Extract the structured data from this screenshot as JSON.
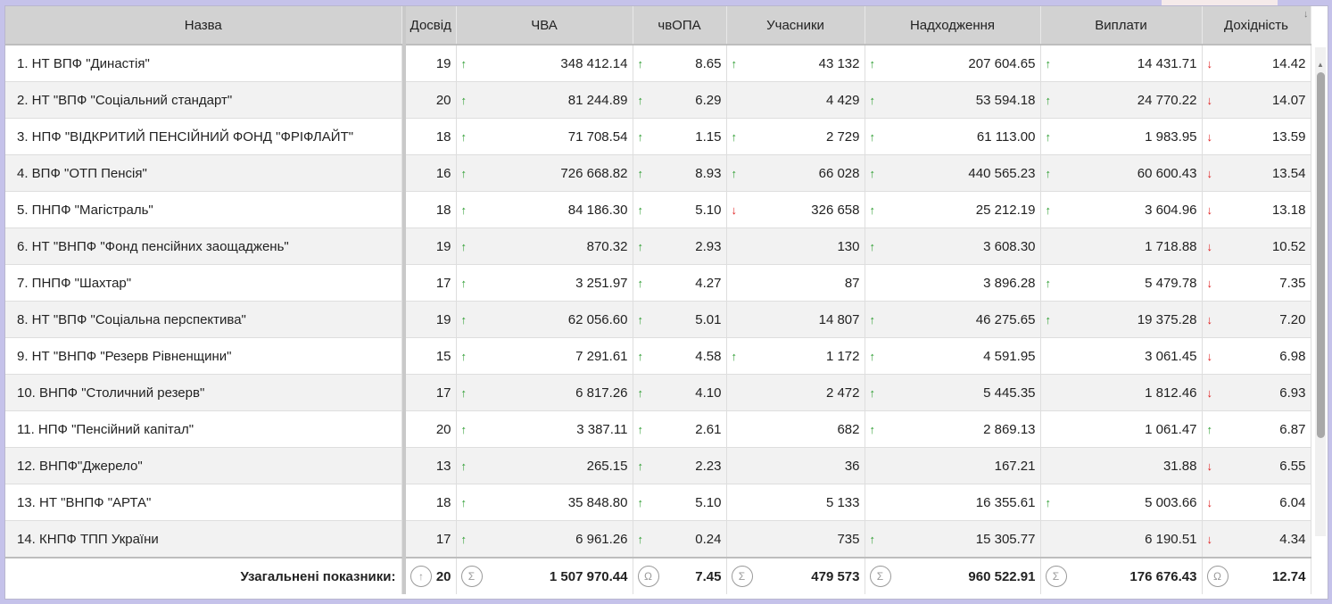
{
  "header": {
    "name": "Назва",
    "experience": "Досвід",
    "nav": "ЧВА",
    "unit_value": "чвОПА",
    "participants": "Учасники",
    "receipts": "Надходження",
    "payments": "Виплати",
    "return": "Дохідність"
  },
  "rows": [
    {
      "name": "1. НТ ВПФ \"Династія\"",
      "exp": "19",
      "nav": "348 412.14",
      "nav_dir": "up",
      "opa": "8.65",
      "opa_dir": "up",
      "part": "43 132",
      "part_dir": "up",
      "in": "207 604.65",
      "in_dir": "up",
      "out": "14 431.71",
      "out_dir": "up",
      "ret": "14.42",
      "ret_dir": "down"
    },
    {
      "name": "2. НТ \"ВПФ \"Соціальний стандарт\"",
      "exp": "20",
      "nav": "81 244.89",
      "nav_dir": "up",
      "opa": "6.29",
      "opa_dir": "up",
      "part": "4 429",
      "part_dir": "",
      "in": "53 594.18",
      "in_dir": "up",
      "out": "24 770.22",
      "out_dir": "up",
      "ret": "14.07",
      "ret_dir": "down"
    },
    {
      "name": "3. НПФ \"ВІДКРИТИЙ ПЕНСІЙНИЙ ФОНД \"ФРІФЛАЙТ\"",
      "exp": "18",
      "nav": "71 708.54",
      "nav_dir": "up",
      "opa": "1.15",
      "opa_dir": "up",
      "part": "2 729",
      "part_dir": "up",
      "in": "61 113.00",
      "in_dir": "up",
      "out": "1 983.95",
      "out_dir": "up",
      "ret": "13.59",
      "ret_dir": "down"
    },
    {
      "name": "4. ВПФ \"ОТП Пенсія\"",
      "exp": "16",
      "nav": "726 668.82",
      "nav_dir": "up",
      "opa": "8.93",
      "opa_dir": "up",
      "part": "66 028",
      "part_dir": "up",
      "in": "440 565.23",
      "in_dir": "up",
      "out": "60 600.43",
      "out_dir": "up",
      "ret": "13.54",
      "ret_dir": "down"
    },
    {
      "name": "5. ПНПФ \"Магістраль\"",
      "exp": "18",
      "nav": "84 186.30",
      "nav_dir": "up",
      "opa": "5.10",
      "opa_dir": "up",
      "part": "326 658",
      "part_dir": "down",
      "in": "25 212.19",
      "in_dir": "up",
      "out": "3 604.96",
      "out_dir": "up",
      "ret": "13.18",
      "ret_dir": "down"
    },
    {
      "name": "6. НТ \"ВНПФ \"Фонд пенсійних заощаджень\"",
      "exp": "19",
      "nav": "870.32",
      "nav_dir": "up",
      "opa": "2.93",
      "opa_dir": "up",
      "part": "130",
      "part_dir": "",
      "in": "3 608.30",
      "in_dir": "up",
      "out": "1 718.88",
      "out_dir": "",
      "ret": "10.52",
      "ret_dir": "down"
    },
    {
      "name": "7. ПНПФ \"Шахтар\"",
      "exp": "17",
      "nav": "3 251.97",
      "nav_dir": "up",
      "opa": "4.27",
      "opa_dir": "up",
      "part": "87",
      "part_dir": "",
      "in": "3 896.28",
      "in_dir": "",
      "out": "5 479.78",
      "out_dir": "up",
      "ret": "7.35",
      "ret_dir": "down"
    },
    {
      "name": "8. НТ \"ВПФ \"Соціальна перспектива\"",
      "exp": "19",
      "nav": "62 056.60",
      "nav_dir": "up",
      "opa": "5.01",
      "opa_dir": "up",
      "part": "14 807",
      "part_dir": "",
      "in": "46 275.65",
      "in_dir": "up",
      "out": "19 375.28",
      "out_dir": "up",
      "ret": "7.20",
      "ret_dir": "down"
    },
    {
      "name": "9. НТ \"ВНПФ \"Резерв Рівненщини\"",
      "exp": "15",
      "nav": "7 291.61",
      "nav_dir": "up",
      "opa": "4.58",
      "opa_dir": "up",
      "part": "1 172",
      "part_dir": "up",
      "in": "4 591.95",
      "in_dir": "up",
      "out": "3 061.45",
      "out_dir": "",
      "ret": "6.98",
      "ret_dir": "down"
    },
    {
      "name": "10. ВНПФ \"Столичний резерв\"",
      "exp": "17",
      "nav": "6 817.26",
      "nav_dir": "up",
      "opa": "4.10",
      "opa_dir": "up",
      "part": "2 472",
      "part_dir": "",
      "in": "5 445.35",
      "in_dir": "up",
      "out": "1 812.46",
      "out_dir": "",
      "ret": "6.93",
      "ret_dir": "down"
    },
    {
      "name": "11. НПФ \"Пенсійний капітал\"",
      "exp": "20",
      "nav": "3 387.11",
      "nav_dir": "up",
      "opa": "2.61",
      "opa_dir": "up",
      "part": "682",
      "part_dir": "",
      "in": "2 869.13",
      "in_dir": "up",
      "out": "1 061.47",
      "out_dir": "",
      "ret": "6.87",
      "ret_dir": "up"
    },
    {
      "name": "12. ВНПФ\"Джерело\"",
      "exp": "13",
      "nav": "265.15",
      "nav_dir": "up",
      "opa": "2.23",
      "opa_dir": "up",
      "part": "36",
      "part_dir": "",
      "in": "167.21",
      "in_dir": "",
      "out": "31.88",
      "out_dir": "",
      "ret": "6.55",
      "ret_dir": "down"
    },
    {
      "name": "13. НТ \"ВНПФ \"АРТА\"",
      "exp": "18",
      "nav": "35 848.80",
      "nav_dir": "up",
      "opa": "5.10",
      "opa_dir": "up",
      "part": "5 133",
      "part_dir": "",
      "in": "16 355.61",
      "in_dir": "",
      "out": "5 003.66",
      "out_dir": "up",
      "ret": "6.04",
      "ret_dir": "down"
    },
    {
      "name": "14. КНПФ ТПП України",
      "exp": "17",
      "nav": "6 961.26",
      "nav_dir": "up",
      "opa": "0.24",
      "opa_dir": "up",
      "part": "735",
      "part_dir": "",
      "in": "15 305.77",
      "in_dir": "up",
      "out": "6 190.51",
      "out_dir": "",
      "ret": "4.34",
      "ret_dir": "down"
    }
  ],
  "footer": {
    "label": "Узагальнені показники:",
    "exp": "20",
    "exp_icon": "↑",
    "nav": "1 507 970.44",
    "nav_icon": "Σ",
    "opa": "7.45",
    "opa_icon": "Ω",
    "part": "479 573",
    "part_icon": "Σ",
    "in": "960 522.91",
    "in_icon": "Σ",
    "out": "176 676.43",
    "out_icon": "Σ",
    "ret": "12.74",
    "ret_icon": "Ω"
  },
  "icons": {
    "up_arrow": "↑",
    "down_arrow": "↓",
    "sort_desc": "↓",
    "colors": {
      "up": "#2e9e32",
      "down": "#e02020"
    }
  }
}
